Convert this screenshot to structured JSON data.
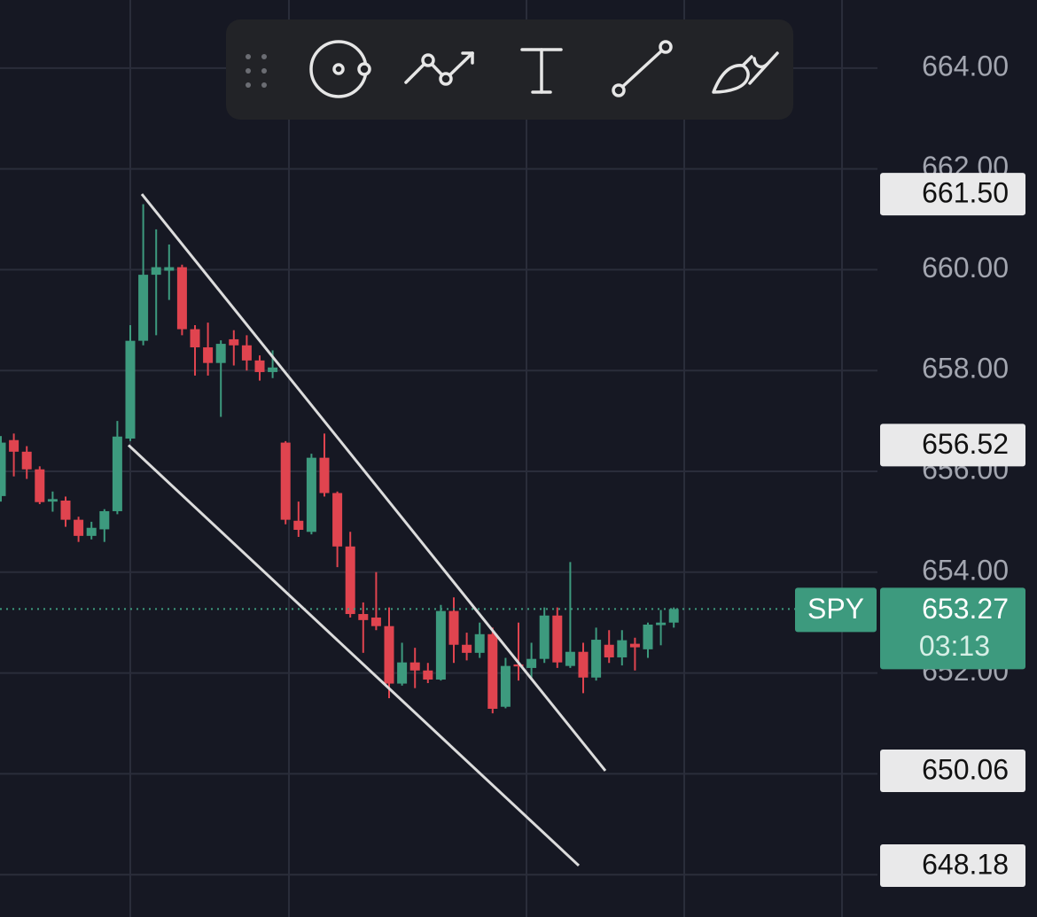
{
  "chart_data": {
    "type": "candlestick",
    "open": [
      655.51,
      656.62,
      656.39,
      656.04,
      655.4,
      655.42,
      655.04,
      654.72,
      654.85,
      655.21,
      656.65,
      658.59,
      659.9,
      659.98,
      660.05,
      658.82,
      658.46,
      658.15,
      658.62,
      658.5,
      658.2,
      657.97,
      656.57,
      655.02,
      654.8,
      656.27,
      655.57,
      654.51,
      653.17,
      653.1,
      652.93,
      651.79,
      652.21,
      652.05,
      651.87,
      653.23,
      652.56,
      652.4,
      652.77,
      651.33,
      652.17,
      652.1,
      652.28,
      653.14,
      652.14,
      652.42,
      651.91,
      652.56,
      652.31,
      652.58,
      652.47,
      652.95,
      653.0
    ],
    "high": [
      656.7,
      656.75,
      656.5,
      656.1,
      655.6,
      655.5,
      655.1,
      655.0,
      655.25,
      657.0,
      658.9,
      661.3,
      660.8,
      660.5,
      660.1,
      658.9,
      658.95,
      658.6,
      658.8,
      658.7,
      658.3,
      658.4,
      656.6,
      655.4,
      656.35,
      656.75,
      655.6,
      654.8,
      653.4,
      654.0,
      653.3,
      652.6,
      652.5,
      652.2,
      653.35,
      653.5,
      652.8,
      653.0,
      652.9,
      652.3,
      653.0,
      652.6,
      653.3,
      653.3,
      654.2,
      652.6,
      652.9,
      652.85,
      652.85,
      652.7,
      653.0,
      653.25,
      653.3
    ],
    "low": [
      655.4,
      655.9,
      655.85,
      655.35,
      655.2,
      654.9,
      654.6,
      654.65,
      654.6,
      655.15,
      656.6,
      658.5,
      658.7,
      659.4,
      658.7,
      657.9,
      657.9,
      657.08,
      658.1,
      658.0,
      657.8,
      657.85,
      654.95,
      654.7,
      654.75,
      655.5,
      654.1,
      653.1,
      652.4,
      652.85,
      651.5,
      651.75,
      651.7,
      651.8,
      651.85,
      652.2,
      652.25,
      652.3,
      651.2,
      651.3,
      651.85,
      651.9,
      652.2,
      652.1,
      652.1,
      651.6,
      651.85,
      652.2,
      652.15,
      652.05,
      652.3,
      652.55,
      652.9
    ],
    "close": [
      656.57,
      656.39,
      656.04,
      655.39,
      655.45,
      655.04,
      654.72,
      654.88,
      655.21,
      656.69,
      658.59,
      659.9,
      660.05,
      660.05,
      658.82,
      658.46,
      658.15,
      658.53,
      658.5,
      658.2,
      657.97,
      658.06,
      655.04,
      654.84,
      656.27,
      655.57,
      654.51,
      653.17,
      653.05,
      652.93,
      651.79,
      652.21,
      652.05,
      651.87,
      653.23,
      652.56,
      652.4,
      652.77,
      651.29,
      652.14,
      652.13,
      652.28,
      653.14,
      652.21,
      652.42,
      651.91,
      652.66,
      652.31,
      652.65,
      652.51,
      652.96,
      653.0,
      653.27
    ],
    "up_color": "#3d9a7e",
    "down_color": "#e0444f",
    "ylim": [
      647.16,
      665.35
    ],
    "yticks": [
      {
        "value": 648,
        "label": "648.00"
      },
      {
        "value": 650,
        "label": "650.00"
      },
      {
        "value": 652,
        "label": "652.00"
      },
      {
        "value": 654,
        "label": "654.00"
      },
      {
        "value": 656,
        "label": "656.00"
      },
      {
        "value": 658,
        "label": "658.00"
      },
      {
        "value": 660,
        "label": "660.00"
      },
      {
        "value": 662,
        "label": "662.00"
      },
      {
        "value": 664,
        "label": "664.00"
      }
    ],
    "grid": true,
    "drawings": [
      {
        "start": {
          "value": 661.5,
          "label": "661.50"
        },
        "end": {
          "value": 650.06,
          "label": "650.06"
        }
      },
      {
        "start": {
          "value": 656.52,
          "label": "656.52"
        },
        "end": {
          "value": 648.18,
          "label": "648.18"
        }
      }
    ],
    "symbol": "SPY",
    "last_price": 653.27,
    "countdown": "03:13"
  }
}
